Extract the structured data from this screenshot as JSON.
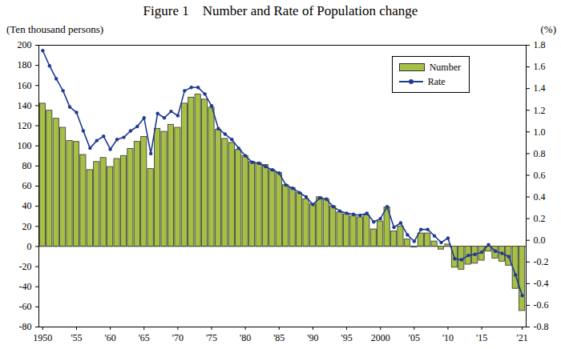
{
  "chart_data": {
    "type": "bar",
    "title": "Figure 1　Number and Rate of Population change",
    "ylabel": "(Ten thousand persons)",
    "y2label": "(%)",
    "categories": [
      "1950",
      null,
      null,
      null,
      null,
      "'55",
      null,
      null,
      null,
      null,
      "'60",
      null,
      null,
      null,
      null,
      "'65",
      null,
      null,
      null,
      null,
      "'70",
      null,
      null,
      null,
      null,
      "'75",
      null,
      null,
      null,
      null,
      "'80",
      null,
      null,
      null,
      null,
      "'85",
      null,
      null,
      null,
      null,
      "'90",
      null,
      null,
      null,
      null,
      "'95",
      null,
      null,
      null,
      null,
      "2000",
      null,
      null,
      null,
      null,
      "'05",
      null,
      null,
      null,
      null,
      "'10",
      null,
      null,
      null,
      null,
      "'15",
      null,
      null,
      null,
      null,
      null,
      "'21"
    ],
    "series": [
      {
        "name": "Number",
        "type": "bar",
        "color": "#a6bf45",
        "values": [
          142,
          135,
          127,
          118,
          105,
          104,
          91,
          76,
          84,
          88,
          79,
          87,
          90,
          97,
          104,
          109,
          77,
          117,
          114,
          121,
          118,
          142,
          148,
          151,
          146,
          138,
          116,
          107,
          103,
          96,
          90,
          84,
          83,
          81,
          76,
          73,
          61,
          58,
          53,
          47,
          42,
          49,
          47,
          40,
          34,
          32,
          30,
          29,
          31,
          17,
          25,
          39,
          15,
          20,
          7,
          -1,
          13,
          13,
          5,
          -3,
          2,
          -21,
          -23,
          -18,
          -17,
          -14,
          -5,
          -12,
          -15,
          -19,
          -42,
          -64
        ]
      },
      {
        "name": "Rate",
        "type": "line",
        "axis": "y2",
        "color": "#1f3a93",
        "marker": "circle",
        "values": [
          1.75,
          1.61,
          1.49,
          1.38,
          1.23,
          1.18,
          1.01,
          0.85,
          0.92,
          0.96,
          0.84,
          0.93,
          0.95,
          1.01,
          1.05,
          1.13,
          0.8,
          1.17,
          1.13,
          1.19,
          1.15,
          1.38,
          1.41,
          1.41,
          1.35,
          1.24,
          1.03,
          0.98,
          0.93,
          0.85,
          0.78,
          0.72,
          0.71,
          0.68,
          0.65,
          0.62,
          0.51,
          0.48,
          0.44,
          0.4,
          0.33,
          0.39,
          0.38,
          0.31,
          0.27,
          0.25,
          0.24,
          0.23,
          0.25,
          0.17,
          0.2,
          0.31,
          0.12,
          0.16,
          0.05,
          -0.01,
          0.1,
          0.1,
          0.04,
          -0.02,
          0.02,
          -0.17,
          -0.18,
          -0.14,
          -0.13,
          -0.11,
          -0.04,
          -0.1,
          -0.12,
          -0.15,
          -0.32,
          -0.51
        ]
      }
    ],
    "ylim": [
      -80,
      200
    ],
    "yticks": [
      -80,
      -60,
      -40,
      -20,
      0,
      20,
      40,
      60,
      80,
      100,
      120,
      140,
      160,
      180,
      200
    ],
    "y2lim": [
      -0.8,
      1.8
    ],
    "y2ticks": [
      -0.8,
      -0.6,
      -0.4,
      -0.2,
      {
        "value": 0,
        "label": "0.0"
      },
      0.2,
      0.4,
      0.6,
      0.8,
      {
        "value": 1,
        "label": "1.0"
      },
      1.2,
      1.4,
      1.6,
      1.8
    ],
    "grid": false,
    "legend": "top-right"
  }
}
